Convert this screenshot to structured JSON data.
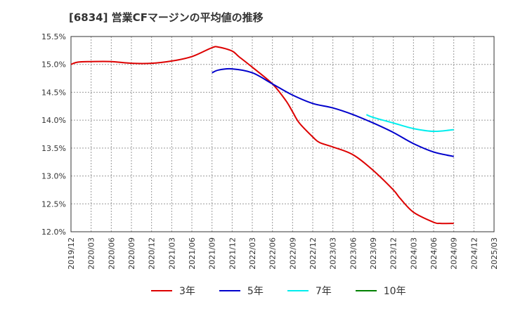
{
  "chart_data": {
    "type": "line",
    "title": "[6834]  営業CFマージンの平均値の推移",
    "x_ticks": [
      "2019/12",
      "2020/03",
      "2020/06",
      "2020/09",
      "2020/12",
      "2021/03",
      "2021/06",
      "2021/09",
      "2021/12",
      "2022/03",
      "2022/06",
      "2022/09",
      "2022/12",
      "2023/03",
      "2023/06",
      "2023/09",
      "2023/12",
      "2024/03",
      "2024/06",
      "2024/09",
      "2024/12",
      "2025/03"
    ],
    "y_ticks": [
      "12.0%",
      "12.5%",
      "13.0%",
      "13.5%",
      "14.0%",
      "14.5%",
      "15.0%",
      "15.5%"
    ],
    "ylim": [
      12.0,
      15.5
    ],
    "grid": true,
    "legend_position": "bottom",
    "series": [
      {
        "name": "3年",
        "color": "#dd0000",
        "x": [
          "2019/12",
          "2020/01",
          "2020/03",
          "2020/06",
          "2020/09",
          "2020/12",
          "2021/03",
          "2021/06",
          "2021/09",
          "2021/10",
          "2021/12",
          "2022/01",
          "2022/03",
          "2022/06",
          "2022/08",
          "2022/09",
          "2022/10",
          "2022/12",
          "2023/01",
          "2023/03",
          "2023/06",
          "2023/09",
          "2023/12",
          "2024/01",
          "2024/03",
          "2024/06",
          "2024/07",
          "2024/09"
        ],
        "values": [
          15.0,
          15.04,
          15.05,
          15.05,
          15.02,
          15.02,
          15.06,
          15.14,
          15.3,
          15.31,
          15.24,
          15.14,
          14.95,
          14.65,
          14.35,
          14.15,
          13.95,
          13.7,
          13.6,
          13.52,
          13.38,
          13.1,
          12.75,
          12.6,
          12.35,
          12.17,
          12.15,
          12.15
        ]
      },
      {
        "name": "5年",
        "color": "#0000cc",
        "x": [
          "2021/09",
          "2021/10",
          "2021/12",
          "2022/03",
          "2022/06",
          "2022/09",
          "2022/12",
          "2023/03",
          "2023/06",
          "2023/09",
          "2023/12",
          "2024/03",
          "2024/06",
          "2024/09"
        ],
        "values": [
          14.85,
          14.9,
          14.92,
          14.85,
          14.65,
          14.45,
          14.3,
          14.22,
          14.1,
          13.95,
          13.78,
          13.58,
          13.43,
          13.35
        ]
      },
      {
        "name": "7年",
        "color": "#00eeee",
        "x": [
          "2023/08",
          "2023/09",
          "2023/12",
          "2024/03",
          "2024/06",
          "2024/09"
        ],
        "values": [
          14.1,
          14.05,
          13.95,
          13.85,
          13.8,
          13.83
        ]
      },
      {
        "name": "10年",
        "color": "#008000",
        "x": [],
        "values": []
      }
    ]
  }
}
